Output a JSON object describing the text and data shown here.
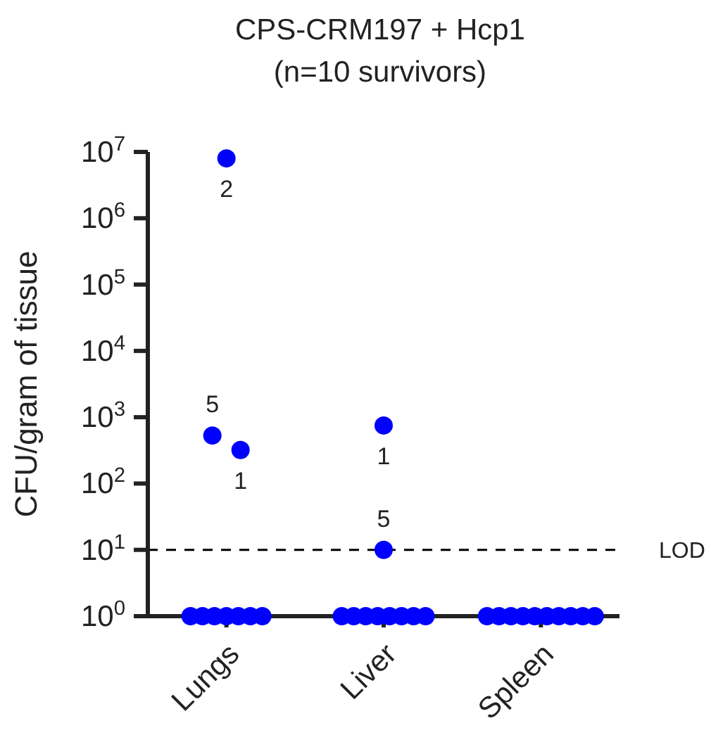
{
  "chart_data": {
    "type": "scatter",
    "title": "CPS-CRM197 + Hcp1",
    "subtitle": "(n=10 survivors)",
    "ylabel": "CFU/gram of tissue",
    "categories": [
      "Lungs",
      "Liver",
      "Spleen"
    ],
    "series": [
      {
        "color": "#0000ff",
        "x": [
          "Lungs",
          "Lungs",
          "Lungs",
          "Lungs",
          "Lungs",
          "Lungs",
          "Lungs",
          "Lungs",
          "Lungs",
          "Lungs",
          "Liver",
          "Liver",
          "Liver",
          "Liver",
          "Liver",
          "Liver",
          "Liver",
          "Liver",
          "Liver",
          "Liver",
          "Spleen",
          "Spleen",
          "Spleen",
          "Spleen",
          "Spleen",
          "Spleen",
          "Spleen",
          "Spleen",
          "Spleen",
          "Spleen"
        ],
        "values": [
          8000000,
          530,
          320,
          1,
          1,
          1,
          1,
          1,
          1,
          1,
          750,
          10,
          1,
          1,
          1,
          1,
          1,
          1,
          1,
          1,
          1,
          1,
          1,
          1,
          1,
          1,
          1,
          1,
          1,
          1
        ]
      }
    ],
    "log": "y",
    "ylim": [
      1,
      10000000
    ],
    "yticks": [
      {
        "value": 1,
        "label": "10$^{0}$"
      },
      {
        "value": 10,
        "label": "10$^{1}$"
      },
      {
        "value": 100,
        "label": "10$^{2}$"
      },
      {
        "value": 1000,
        "label": "10$^{3}$"
      },
      {
        "value": 10000,
        "label": "10$^{4}$"
      },
      {
        "value": 100000,
        "label": "10$^{5}$"
      },
      {
        "value": 1000000,
        "label": "10$^{6}$"
      },
      {
        "value": 10000000,
        "label": "10$^{7}$"
      }
    ],
    "ref_lines": [
      {
        "axis": "y",
        "value": 10,
        "label": "LOD",
        "line_style": "dashed",
        "color": "#000000"
      }
    ],
    "annotations": [
      {
        "text": "2",
        "x": "Lungs",
        "y": 8000000
      },
      {
        "text": "5",
        "x": "Lungs",
        "y": 530
      },
      {
        "text": "1",
        "x": "Lungs",
        "y": 320
      },
      {
        "text": "1",
        "x": "Liver",
        "y": 750
      },
      {
        "text": "5",
        "x": "Liver",
        "y": 10
      }
    ],
    "marker": "circle",
    "grid": false,
    "legend": false
  }
}
